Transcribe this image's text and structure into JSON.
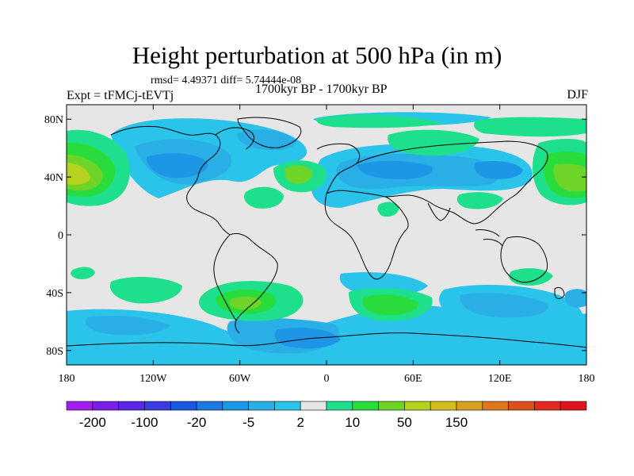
{
  "map": {
    "title": "Height perturbation at 500 hPa (in m)",
    "stats": "rmsd= 4.49371 diff= 5.74444e-08",
    "experiment": "Expt = tFMCj-tEVTj",
    "period": "1700kyr BP - 1700kyr BP",
    "season": "DJF",
    "lat_ticks": [
      {
        "lat": 80,
        "label": "80N"
      },
      {
        "lat": 40,
        "label": "40N"
      },
      {
        "lat": 0,
        "label": "0"
      },
      {
        "lat": -40,
        "label": "40S"
      },
      {
        "lat": -80,
        "label": "80S"
      }
    ],
    "lon_ticks": [
      {
        "lon": -180,
        "label": "180"
      },
      {
        "lon": -120,
        "label": "120W"
      },
      {
        "lon": -60,
        "label": "60W"
      },
      {
        "lon": 0,
        "label": "0"
      },
      {
        "lon": 60,
        "label": "60E"
      },
      {
        "lon": 120,
        "label": "120E"
      },
      {
        "lon": 180,
        "label": "180"
      }
    ],
    "lon_range": [
      -180,
      180
    ],
    "lat_range": [
      -90,
      90
    ],
    "background_color": "#e6e6e6"
  },
  "colorbar": {
    "colors": [
      "#a020f0",
      "#7a1ee8",
      "#5a28e6",
      "#3a3ce0",
      "#1a5ae0",
      "#1e78e2",
      "#1e96e6",
      "#2aaee6",
      "#2ac3ea",
      "#e6e6e6",
      "#1ee08c",
      "#28dc3c",
      "#6ed428",
      "#b4d21e",
      "#d2be1e",
      "#d8a21e",
      "#dc781e",
      "#dc501e",
      "#e02a1e",
      "#e0141e"
    ],
    "labels": [
      {
        "after_box": 1,
        "text": "-200"
      },
      {
        "after_box": 3,
        "text": "-100"
      },
      {
        "after_box": 5,
        "text": "-20"
      },
      {
        "after_box": 7,
        "text": "-5"
      },
      {
        "after_box": 9,
        "text": "2"
      },
      {
        "after_box": 11,
        "text": "10"
      },
      {
        "after_box": 13,
        "text": "50"
      },
      {
        "after_box": 15,
        "text": "150"
      }
    ]
  }
}
